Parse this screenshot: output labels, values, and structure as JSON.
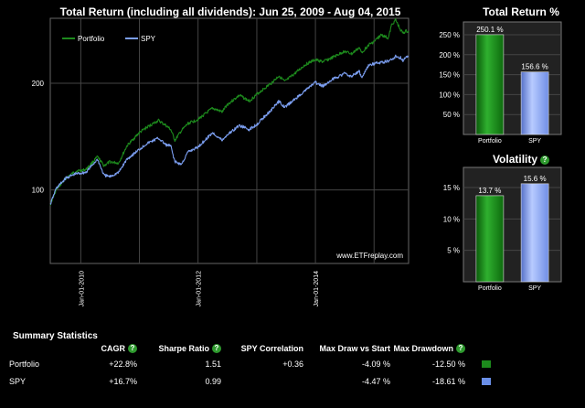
{
  "main_title": "Total Return (including all dividends): Jun 25, 2009 - Aug 04, 2015",
  "watermark": "www.ETFreplay.com",
  "total_return_title": "Total Return %",
  "volatility_title": "Volatility",
  "help_glyph": "?",
  "summary_title": "Summary Statistics",
  "colors": {
    "portfolio": "#1d8a1d",
    "spy": "#7b9ef0",
    "portfolio_swatch": "#1c8a1c",
    "spy_swatch": "#6a8fe8",
    "help": "#2e9a2e"
  },
  "chart_data": [
    {
      "type": "line",
      "title": "Total Return (including all dividends): Jun 25, 2009 - Aug 04, 2015",
      "x_ticks": [
        "Jan-01-2010",
        "Jan-01-2012",
        "Jan-01-2014"
      ],
      "y_ticks": [
        "100",
        "200"
      ],
      "y_scale": "log",
      "ylim": [
        62,
        305
      ],
      "xlim": [
        "2009-06-25",
        "2015-08-04"
      ],
      "legend": "top-left",
      "grid": true,
      "series": [
        {
          "name": "Portfolio",
          "x": [
            "2009-06-25",
            "2009-08-01",
            "2009-10-01",
            "2009-12-01",
            "2010-02-01",
            "2010-04-15",
            "2010-05-25",
            "2010-07-01",
            "2010-08-25",
            "2010-10-15",
            "2010-12-31",
            "2011-02-15",
            "2011-04-29",
            "2011-06-15",
            "2011-07-15",
            "2011-08-10",
            "2011-09-20",
            "2011-10-31",
            "2011-12-31",
            "2012-03-31",
            "2012-05-31",
            "2012-06-30",
            "2012-09-15",
            "2012-11-15",
            "2012-12-31",
            "2013-03-31",
            "2013-05-20",
            "2013-06-24",
            "2013-08-31",
            "2013-10-31",
            "2013-12-31",
            "2014-02-15",
            "2014-04-15",
            "2014-06-30",
            "2014-08-15",
            "2014-09-30",
            "2014-10-15",
            "2014-11-30",
            "2014-12-31",
            "2015-02-15",
            "2015-03-31",
            "2015-04-20",
            "2015-05-15",
            "2015-06-15",
            "2015-06-30",
            "2015-07-20",
            "2015-08-04"
          ],
          "values": [
            91,
            100,
            108,
            113,
            114,
            124,
            117,
            120,
            119,
            133,
            145,
            150,
            157,
            152,
            148,
            138,
            147,
            154,
            158,
            170,
            166,
            174,
            185,
            178,
            186,
            200,
            210,
            202,
            214,
            226,
            233,
            230,
            236,
            246,
            242,
            252,
            244,
            257,
            262,
            274,
            268,
            292,
            302,
            283,
            277,
            281,
            279
          ]
        },
        {
          "name": "SPY",
          "x": [
            "2009-06-25",
            "2009-08-01",
            "2009-10-01",
            "2009-12-01",
            "2010-02-01",
            "2010-04-15",
            "2010-05-25",
            "2010-07-01",
            "2010-08-25",
            "2010-10-15",
            "2010-12-31",
            "2011-02-15",
            "2011-04-29",
            "2011-06-15",
            "2011-07-15",
            "2011-08-10",
            "2011-09-20",
            "2011-10-31",
            "2011-12-31",
            "2012-03-31",
            "2012-05-31",
            "2012-06-30",
            "2012-09-15",
            "2012-11-15",
            "2012-12-31",
            "2013-03-31",
            "2013-05-20",
            "2013-06-24",
            "2013-08-31",
            "2013-10-31",
            "2013-12-31",
            "2014-02-15",
            "2014-04-15",
            "2014-06-30",
            "2014-08-15",
            "2014-09-30",
            "2014-10-15",
            "2014-11-30",
            "2014-12-31",
            "2015-02-15",
            "2015-03-31",
            "2015-04-20",
            "2015-05-15",
            "2015-06-15",
            "2015-06-30",
            "2015-07-20",
            "2015-08-04"
          ],
          "values": [
            91,
            101,
            108,
            111,
            112,
            122,
            110,
            109,
            112,
            122,
            130,
            135,
            140,
            134,
            133,
            120,
            118,
            128,
            132,
            145,
            138,
            143,
            152,
            148,
            153,
            168,
            178,
            171,
            181,
            191,
            201,
            196,
            205,
            213,
            209,
            217,
            207,
            225,
            227,
            229,
            231,
            233,
            238,
            236,
            232,
            237,
            237
          ]
        }
      ]
    },
    {
      "type": "bar",
      "title": "Total Return %",
      "categories": [
        "Portfolio",
        "SPY"
      ],
      "values": [
        250.1,
        156.6
      ],
      "data_labels": [
        "250.1 %",
        "156.6 %"
      ],
      "y_ticks": [
        "50 %",
        "100 %",
        "150 %",
        "200 %",
        "250 %"
      ],
      "ylim": [
        0,
        282
      ]
    },
    {
      "type": "bar",
      "title": "Volatility",
      "categories": [
        "Portfolio",
        "SPY"
      ],
      "values": [
        13.7,
        15.6
      ],
      "data_labels": [
        "13.7 %",
        "15.6 %"
      ],
      "y_ticks": [
        "5 %",
        "10 %",
        "15 %"
      ],
      "ylim": [
        0,
        18.2
      ]
    }
  ],
  "summary": {
    "headers": [
      "CAGR",
      "Sharpe Ratio",
      "SPY Correlation",
      "Max Draw vs Start",
      "Max Drawdown"
    ],
    "rows": [
      {
        "name": "Portfolio",
        "cells": [
          "+22.8%",
          "1.51",
          "+0.36",
          "-4.09 %",
          "-12.50 %"
        ]
      },
      {
        "name": "SPY",
        "cells": [
          "+16.7%",
          "0.99",
          "",
          "-4.47 %",
          "-18.61 %"
        ]
      }
    ]
  }
}
